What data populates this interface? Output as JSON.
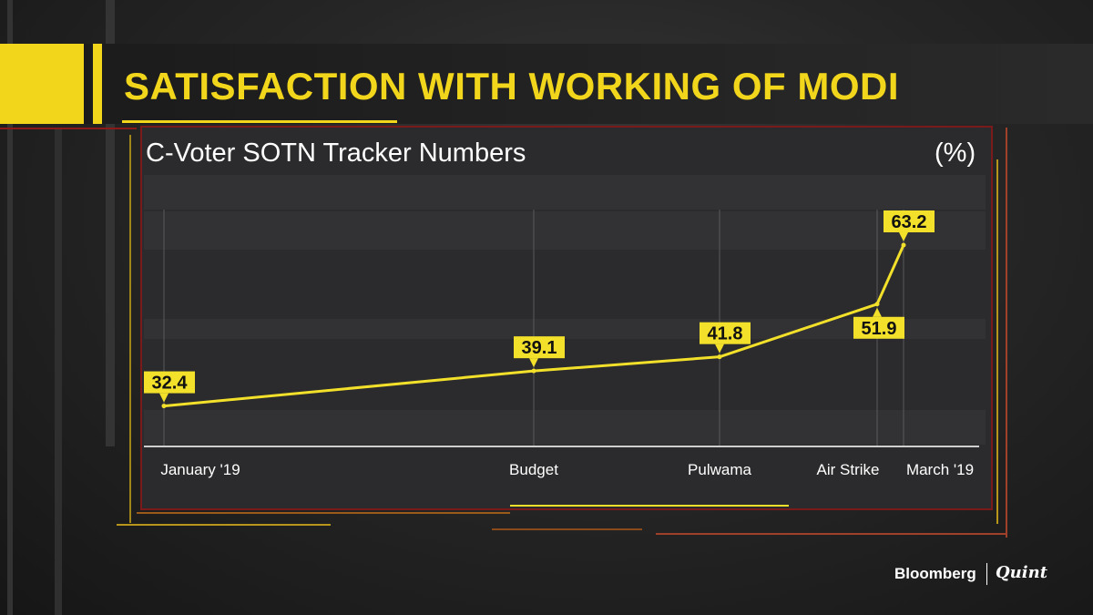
{
  "header": {
    "title": "SATISFACTION WITH WORKING OF MODI"
  },
  "chart_data": {
    "type": "line",
    "title": "C-Voter SOTN Tracker Numbers",
    "unit": "(%)",
    "categories": [
      "January '19",
      "Budget",
      "Pulwama",
      "Air Strike",
      "March '19"
    ],
    "values": [
      32.4,
      39.1,
      41.8,
      51.9,
      63.2
    ],
    "label_texts": [
      "32.4",
      "39.1",
      "41.8",
      "51.9",
      "63.2"
    ],
    "ylim": [
      25,
      70
    ],
    "grid": false,
    "colors": {
      "line": "#f2e02a",
      "label_bg": "#f2e02a",
      "label_text": "#111111"
    }
  },
  "footer": {
    "brand_left": "Bloomberg",
    "brand_right": "Quint"
  }
}
